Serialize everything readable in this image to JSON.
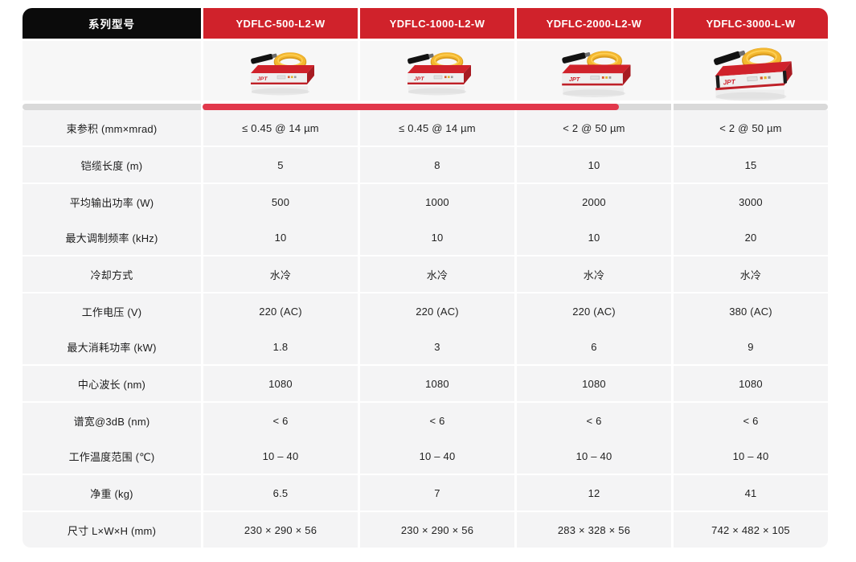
{
  "header": {
    "series_label": "系列型号",
    "models": [
      "YDFLC-500-L2-W",
      "YDFLC-1000-L2-W",
      "YDFLC-2000-L2-W",
      "YDFLC-3000-L-W"
    ]
  },
  "images": {
    "description": "red fiber laser module with yellow fiber coil and black output cable",
    "brand": "JPT"
  },
  "scrollbar": {
    "thumb_covers_columns": "YDFLC-500-L2-W to YDFLC-2000-L2-W",
    "thumb_color": "#e2394c",
    "track_color": "#d9d9d9"
  },
  "colors": {
    "header_red": "#d0222b",
    "header_black": "#0b0b0b",
    "row_gray": "#f4f4f5",
    "image_row_gray": "#f7f7f7",
    "track_gray": "#d9d9d9",
    "thumb_red": "#e2394c",
    "coil_yellow": "#f3b72f",
    "text": "#232323"
  },
  "table": {
    "groups": [
      [
        0
      ],
      [
        1
      ],
      [
        2,
        3
      ],
      [
        4
      ],
      [
        5,
        6
      ],
      [
        7
      ],
      [
        8,
        9
      ],
      [
        10
      ],
      [
        11
      ]
    ],
    "rows": [
      {
        "label": "束参积 (mm×mrad)",
        "values": [
          "≤ 0.45 @ 14 µm",
          "≤ 0.45 @ 14 µm",
          "< 2 @ 50 µm",
          "< 2 @ 50 µm"
        ]
      },
      {
        "label": "铠缆长度 (m)",
        "values": [
          "5",
          "8",
          "10",
          "15"
        ]
      },
      {
        "label": "平均输出功率 (W)",
        "values": [
          "500",
          "1000",
          "2000",
          "3000"
        ]
      },
      {
        "label": "最大调制频率 (kHz)",
        "values": [
          "10",
          "10",
          "10",
          "20"
        ]
      },
      {
        "label": "冷却方式",
        "values": [
          "水冷",
          "水冷",
          "水冷",
          "水冷"
        ]
      },
      {
        "label": "工作电压 (V)",
        "values": [
          "220 (AC)",
          "220 (AC)",
          "220 (AC)",
          "380 (AC)"
        ]
      },
      {
        "label": "最大消耗功率 (kW)",
        "values": [
          "1.8",
          "3",
          "6",
          "9"
        ]
      },
      {
        "label": "中心波长 (nm)",
        "values": [
          "1080",
          "1080",
          "1080",
          "1080"
        ]
      },
      {
        "label": "谱宽@3dB (nm)",
        "values": [
          "< 6",
          "< 6",
          "< 6",
          "< 6"
        ]
      },
      {
        "label": "工作温度范围 (℃)",
        "values": [
          "10 – 40",
          "10 – 40",
          "10 – 40",
          "10 – 40"
        ]
      },
      {
        "label": "净重 (kg)",
        "values": [
          "6.5",
          "7",
          "12",
          "41"
        ]
      },
      {
        "label": "尺寸 L×W×H (mm)",
        "values": [
          "230 × 290 × 56",
          "230 × 290 × 56",
          "283 × 328 × 56",
          "742 × 482 × 105"
        ]
      }
    ]
  }
}
